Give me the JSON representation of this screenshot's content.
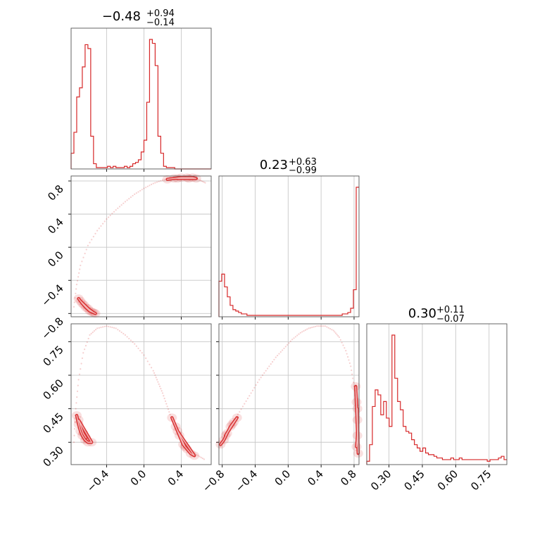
{
  "chart_data": {
    "type": "corner",
    "color": "#d62728",
    "grid": true,
    "params": [
      {
        "title": {
          "median": "−0.48",
          "plus": "+0.94",
          "minus": "−0.14"
        },
        "range": [
          -0.78,
          0.72
        ]
      },
      {
        "title": {
          "median": "0.23",
          "plus": "+0.63",
          "minus": "−0.99"
        },
        "range": [
          -0.84,
          0.86
        ]
      },
      {
        "title": {
          "median": "0.30",
          "plus": "+0.11",
          "minus": "−0.07"
        },
        "range": [
          0.2,
          0.83
        ]
      }
    ],
    "ticks": {
      "p0": [
        {
          "v": -0.4,
          "label": "−0.4"
        },
        {
          "v": 0.0,
          "label": "0.0"
        },
        {
          "v": 0.4,
          "label": "0.4"
        }
      ],
      "p1": [
        {
          "v": -0.8,
          "label": "−0.8"
        },
        {
          "v": -0.4,
          "label": "−0.4"
        },
        {
          "v": 0.0,
          "label": "0.0"
        },
        {
          "v": 0.4,
          "label": "0.4"
        },
        {
          "v": 0.8,
          "label": "0.8"
        }
      ],
      "p2": [
        {
          "v": 0.3,
          "label": "0.30"
        },
        {
          "v": 0.45,
          "label": "0.45"
        },
        {
          "v": 0.6,
          "label": "0.60"
        },
        {
          "v": 0.75,
          "label": "0.75"
        }
      ]
    },
    "hist_p0": {
      "edges_start": -0.78,
      "bin_width": 0.03,
      "counts": [
        0.12,
        0.28,
        0.55,
        0.62,
        0.78,
        0.95,
        0.92,
        0.25,
        0.04,
        0.01,
        0.01,
        0.01,
        0.01,
        0.02,
        0.01,
        0.02,
        0.01,
        0.01,
        0.01,
        0.02,
        0.01,
        0.02,
        0.04,
        0.05,
        0.07,
        0.13,
        0.22,
        0.51,
        0.99,
        0.96,
        0.79,
        0.25,
        0.12,
        0.02,
        0.01,
        0.01,
        0.01,
        0.0,
        0.0,
        0.0,
        0.0,
        0.0,
        0.0,
        0.0,
        0.0,
        0.0,
        0.0,
        0.0,
        0.0,
        0.0
      ]
    },
    "hist_p1": {
      "edges_start": -0.84,
      "bin_width": 0.034,
      "counts": [
        0.25,
        0.3,
        0.21,
        0.14,
        0.08,
        0.05,
        0.04,
        0.03,
        0.02,
        0.02,
        0.01,
        0.01,
        0.01,
        0.01,
        0.01,
        0.01,
        0.01,
        0.01,
        0.01,
        0.01,
        0.01,
        0.01,
        0.01,
        0.01,
        0.01,
        0.01,
        0.01,
        0.01,
        0.01,
        0.01,
        0.01,
        0.01,
        0.01,
        0.01,
        0.01,
        0.01,
        0.01,
        0.01,
        0.01,
        0.01,
        0.01,
        0.01,
        0.01,
        0.01,
        0.02,
        0.02,
        0.03,
        0.06,
        0.19,
        0.91
      ]
    },
    "hist_p2": {
      "edges_start": 0.2,
      "bin_width": 0.0126,
      "counts": [
        0.02,
        0.12,
        0.35,
        0.45,
        0.42,
        0.3,
        0.38,
        0.28,
        0.23,
        0.78,
        0.52,
        0.38,
        0.33,
        0.23,
        0.2,
        0.19,
        0.15,
        0.12,
        0.1,
        0.08,
        0.1,
        0.07,
        0.06,
        0.06,
        0.05,
        0.04,
        0.04,
        0.03,
        0.03,
        0.03,
        0.04,
        0.03,
        0.03,
        0.04,
        0.03,
        0.03,
        0.03,
        0.03,
        0.03,
        0.03,
        0.03,
        0.03,
        0.03,
        0.02,
        0.03,
        0.03,
        0.03,
        0.04,
        0.05,
        0.03
      ]
    },
    "scatter_p1_vs_p0": {
      "arc": [
        [
          -0.75,
          -0.72
        ],
        [
          -0.72,
          -0.45
        ],
        [
          -0.68,
          -0.22
        ],
        [
          -0.6,
          0.02
        ],
        [
          -0.5,
          0.2
        ],
        [
          -0.4,
          0.34
        ],
        [
          -0.3,
          0.45
        ],
        [
          -0.2,
          0.55
        ],
        [
          -0.1,
          0.64
        ],
        [
          0.0,
          0.71
        ],
        [
          0.1,
          0.77
        ],
        [
          0.2,
          0.81
        ],
        [
          0.3,
          0.83
        ],
        [
          0.4,
          0.84
        ],
        [
          0.5,
          0.84
        ],
        [
          0.6,
          0.81
        ],
        [
          0.67,
          0.77
        ]
      ],
      "cluster_a": [
        [
          -0.7,
          -0.62
        ],
        [
          -0.66,
          -0.68
        ],
        [
          -0.62,
          -0.73
        ],
        [
          -0.58,
          -0.77
        ],
        [
          -0.54,
          -0.79
        ],
        [
          -0.6,
          -0.74
        ],
        [
          -0.64,
          -0.7
        ],
        [
          -0.68,
          -0.65
        ],
        [
          -0.56,
          -0.78
        ],
        [
          -0.52,
          -0.8
        ]
      ],
      "cluster_b": [
        [
          0.25,
          0.82
        ],
        [
          0.32,
          0.83
        ],
        [
          0.4,
          0.84
        ],
        [
          0.46,
          0.84
        ],
        [
          0.52,
          0.84
        ],
        [
          0.56,
          0.83
        ],
        [
          0.36,
          0.83
        ],
        [
          0.48,
          0.83
        ]
      ]
    },
    "scatter_p2_vs_p0": {
      "arc": [
        [
          -0.75,
          0.3
        ],
        [
          -0.73,
          0.45
        ],
        [
          -0.7,
          0.58
        ],
        [
          -0.65,
          0.7
        ],
        [
          -0.58,
          0.78
        ],
        [
          -0.5,
          0.81
        ],
        [
          -0.4,
          0.82
        ],
        [
          -0.3,
          0.81
        ],
        [
          -0.2,
          0.78
        ],
        [
          -0.1,
          0.74
        ],
        [
          0.0,
          0.69
        ],
        [
          0.1,
          0.62
        ],
        [
          0.15,
          0.57
        ],
        [
          0.2,
          0.52
        ],
        [
          0.25,
          0.46
        ],
        [
          0.3,
          0.4
        ],
        [
          0.35,
          0.35
        ],
        [
          0.42,
          0.3
        ],
        [
          0.5,
          0.26
        ],
        [
          0.58,
          0.24
        ],
        [
          0.66,
          0.22
        ]
      ],
      "cluster_a": [
        [
          -0.72,
          0.42
        ],
        [
          -0.7,
          0.38
        ],
        [
          -0.68,
          0.35
        ],
        [
          -0.66,
          0.33
        ],
        [
          -0.63,
          0.31
        ],
        [
          -0.6,
          0.3
        ],
        [
          -0.56,
          0.3
        ],
        [
          -0.7,
          0.4
        ],
        [
          -0.65,
          0.34
        ],
        [
          -0.62,
          0.32
        ]
      ],
      "cluster_b": [
        [
          0.3,
          0.41
        ],
        [
          0.34,
          0.37
        ],
        [
          0.38,
          0.33
        ],
        [
          0.42,
          0.29
        ],
        [
          0.46,
          0.27
        ],
        [
          0.5,
          0.25
        ],
        [
          0.54,
          0.24
        ],
        [
          0.36,
          0.35
        ],
        [
          0.44,
          0.28
        ]
      ]
    },
    "scatter_p2_vs_p1": {
      "arc": [
        [
          -0.82,
          0.28
        ],
        [
          -0.75,
          0.34
        ],
        [
          -0.65,
          0.4
        ],
        [
          -0.55,
          0.46
        ],
        [
          -0.45,
          0.52
        ],
        [
          -0.35,
          0.58
        ],
        [
          -0.25,
          0.63
        ],
        [
          -0.15,
          0.68
        ],
        [
          -0.05,
          0.72
        ],
        [
          0.05,
          0.76
        ],
        [
          0.15,
          0.79
        ],
        [
          0.25,
          0.81
        ],
        [
          0.35,
          0.82
        ],
        [
          0.45,
          0.82
        ],
        [
          0.55,
          0.8
        ],
        [
          0.62,
          0.77
        ],
        [
          0.7,
          0.71
        ],
        [
          0.76,
          0.64
        ],
        [
          0.8,
          0.55
        ],
        [
          0.83,
          0.45
        ],
        [
          0.85,
          0.35
        ],
        [
          0.86,
          0.25
        ]
      ],
      "cluster_a": [
        [
          -0.82,
          0.29
        ],
        [
          -0.78,
          0.31
        ],
        [
          -0.74,
          0.34
        ],
        [
          -0.7,
          0.37
        ],
        [
          -0.66,
          0.39
        ],
        [
          -0.62,
          0.41
        ],
        [
          -0.76,
          0.33
        ],
        [
          -0.68,
          0.38
        ]
      ],
      "cluster_b": [
        [
          0.83,
          0.28
        ],
        [
          0.84,
          0.33
        ],
        [
          0.84,
          0.4
        ],
        [
          0.83,
          0.48
        ],
        [
          0.82,
          0.55
        ],
        [
          0.85,
          0.25
        ],
        [
          0.84,
          0.45
        ]
      ]
    }
  }
}
